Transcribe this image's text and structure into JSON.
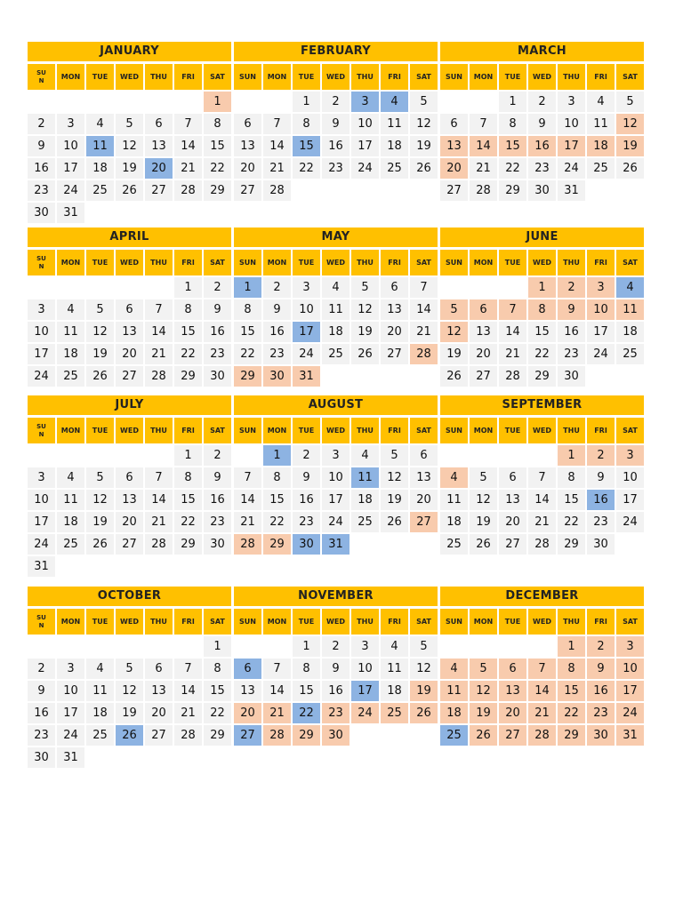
{
  "colors": {
    "header": "#FFC000",
    "day_cell": "#f2f2f2",
    "highlight_blue": "#8DB3E2",
    "highlight_peach": "#F8CBAD"
  },
  "months": [
    {
      "name": "JANUARY",
      "weekday_labels": [
        "SU N",
        "MON",
        "TUE",
        "WED",
        "THU",
        "FRI",
        "SAT"
      ],
      "start_weekday": 6,
      "days": 31,
      "blue": [
        11,
        20
      ],
      "peach": [
        1
      ]
    },
    {
      "name": "FEBRUARY",
      "weekday_labels": [
        "SUN",
        "MON",
        "TUE",
        "WED",
        "THU",
        "FRI",
        "SAT"
      ],
      "start_weekday": 2,
      "days": 28,
      "blue": [
        3,
        4,
        15
      ],
      "peach": []
    },
    {
      "name": "MARCH",
      "weekday_labels": [
        "SUN",
        "MON",
        "TUE",
        "WED",
        "THU",
        "FRI",
        "SAT"
      ],
      "start_weekday": 2,
      "days": 31,
      "blue": [],
      "peach": [
        12,
        13,
        14,
        15,
        16,
        17,
        18,
        19,
        20
      ]
    },
    {
      "name": "APRIL",
      "weekday_labels": [
        "SU N",
        "MON",
        "TUE",
        "WED",
        "THU",
        "FRI",
        "SAT"
      ],
      "start_weekday": 5,
      "days": 30,
      "blue": [],
      "peach": []
    },
    {
      "name": "MAY",
      "weekday_labels": [
        "SUN",
        "MON",
        "TUE",
        "WED",
        "THU",
        "FRI",
        "SAT"
      ],
      "start_weekday": 0,
      "days": 31,
      "blue": [
        1,
        17
      ],
      "peach": [
        28,
        29,
        30,
        31
      ]
    },
    {
      "name": "JUNE",
      "weekday_labels": [
        "SUN",
        "MON",
        "TUE",
        "WED",
        "THU",
        "FRI",
        "SAT"
      ],
      "start_weekday": 3,
      "days": 30,
      "blue": [
        4
      ],
      "peach": [
        1,
        2,
        3,
        5,
        6,
        7,
        8,
        9,
        10,
        11,
        12
      ]
    },
    {
      "name": "JULY",
      "weekday_labels": [
        "SU N",
        "MON",
        "TUE",
        "WED",
        "THU",
        "FRI",
        "SAT"
      ],
      "start_weekday": 5,
      "days": 31,
      "blue": [],
      "peach": []
    },
    {
      "name": "AUGUST",
      "weekday_labels": [
        "SUN",
        "MON",
        "TUE",
        "WED",
        "THU",
        "FRI",
        "SAT"
      ],
      "start_weekday": 1,
      "days": 31,
      "blue": [
        1,
        11,
        30,
        31
      ],
      "peach": [
        27,
        28,
        29
      ]
    },
    {
      "name": "SEPTEMBER",
      "weekday_labels": [
        "SUN",
        "MON",
        "TUE",
        "WED",
        "THU",
        "FRI",
        "SAT"
      ],
      "start_weekday": 4,
      "days": 30,
      "blue": [
        16
      ],
      "peach": [
        1,
        2,
        3,
        4
      ]
    },
    {
      "name": "OCTOBER",
      "weekday_labels": [
        "SU N",
        "MON",
        "TUE",
        "WED",
        "THU",
        "FRI",
        "SAT"
      ],
      "start_weekday": 6,
      "days": 31,
      "blue": [
        26
      ],
      "peach": []
    },
    {
      "name": "NOVEMBER",
      "weekday_labels": [
        "SUN",
        "MON",
        "TUE",
        "WED",
        "THU",
        "FRI",
        "SAT"
      ],
      "start_weekday": 2,
      "days": 30,
      "blue": [
        6,
        17,
        22,
        27
      ],
      "peach": [
        19,
        20,
        21,
        23,
        24,
        25,
        26,
        28,
        29,
        30
      ]
    },
    {
      "name": "DECEMBER",
      "weekday_labels": [
        "SUN",
        "MON",
        "TUE",
        "WED",
        "THU",
        "FRI",
        "SAT"
      ],
      "start_weekday": 4,
      "days": 31,
      "blue": [
        25
      ],
      "peach": [
        1,
        2,
        3,
        4,
        5,
        6,
        7,
        8,
        9,
        10,
        11,
        12,
        13,
        14,
        15,
        16,
        17,
        18,
        19,
        20,
        21,
        22,
        23,
        24,
        26,
        27,
        28,
        29,
        30,
        31
      ]
    }
  ]
}
